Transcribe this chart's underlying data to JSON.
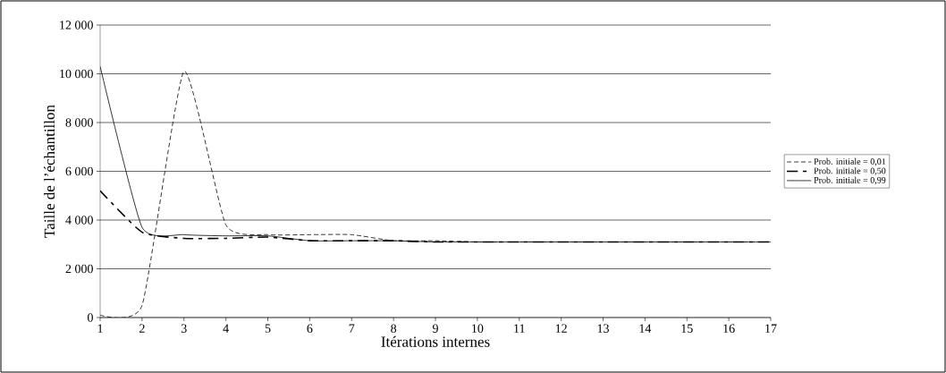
{
  "chart_data": {
    "type": "line",
    "xlabel": "Itérations internes",
    "ylabel": "Taille de l’échantillon",
    "x": [
      1,
      2,
      3,
      4,
      5,
      6,
      7,
      8,
      9,
      10,
      11,
      12,
      13,
      14,
      15,
      16,
      17
    ],
    "series": [
      {
        "name": "Prob. initiale = 0,01",
        "color": "#000000",
        "line_style": "dashed",
        "values": [
          100,
          500,
          10100,
          3800,
          3400,
          3400,
          3400,
          3150,
          3150,
          3100,
          3100,
          3100,
          3100,
          3100,
          3100,
          3100,
          3100
        ]
      },
      {
        "name": "Prob. initiale = 0,50",
        "color": "#000000",
        "line_style": "dashdot",
        "values": [
          5200,
          3500,
          3250,
          3250,
          3300,
          3150,
          3150,
          3150,
          3100,
          3100,
          3100,
          3100,
          3100,
          3100,
          3100,
          3100,
          3100
        ]
      },
      {
        "name": "Prob. initiale = 0,99",
        "color": "#000000",
        "line_style": "solid",
        "values": [
          10300,
          3700,
          3400,
          3350,
          3350,
          3150,
          3150,
          3150,
          3100,
          3100,
          3100,
          3100,
          3100,
          3100,
          3100,
          3100,
          3100
        ]
      }
    ],
    "xlim": [
      1,
      17
    ],
    "xticks": [
      1,
      2,
      3,
      4,
      5,
      6,
      7,
      8,
      9,
      10,
      11,
      12,
      13,
      14,
      15,
      16,
      17
    ],
    "ylim": [
      0,
      12000
    ],
    "yticks": [
      {
        "value": 0,
        "label": "0"
      },
      {
        "value": 2000,
        "label": "2 000"
      },
      {
        "value": 4000,
        "label": "4 000"
      },
      {
        "value": 6000,
        "label": "6 000"
      },
      {
        "value": 8000,
        "label": "8 000"
      },
      {
        "value": 10000,
        "label": "10 000"
      },
      {
        "value": 12000,
        "label": "12 000"
      }
    ],
    "grid": "y",
    "legend": "right",
    "marker": "none"
  }
}
